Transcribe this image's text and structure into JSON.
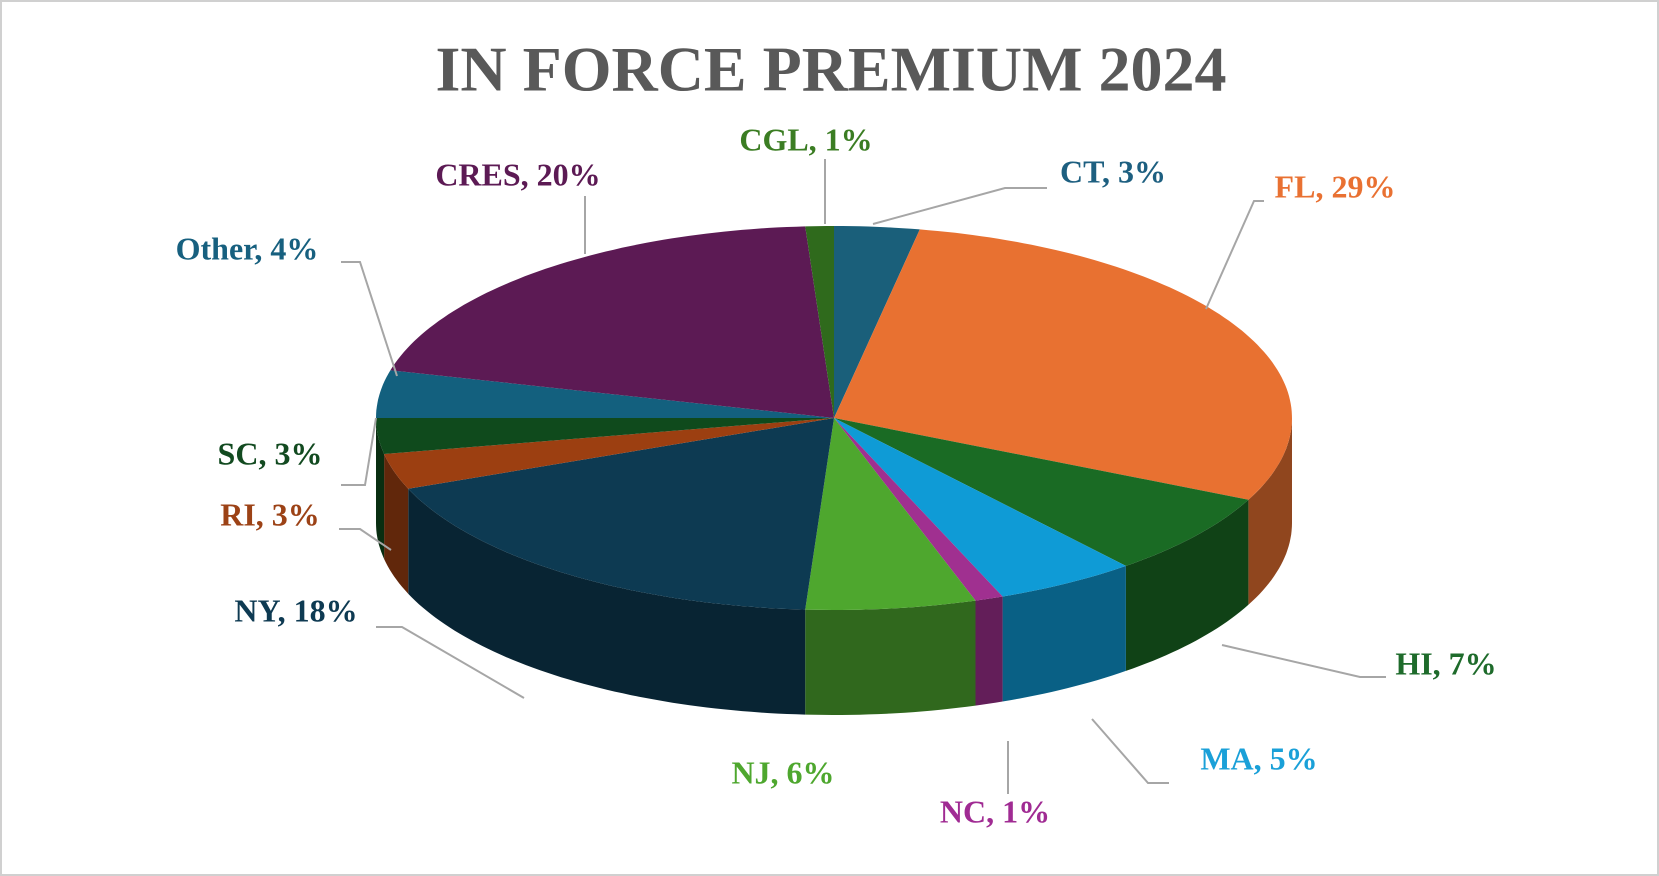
{
  "chart_data": {
    "type": "pie",
    "title": "IN FORCE PREMIUM 2024",
    "categories": [
      "CT",
      "FL",
      "HI",
      "MA",
      "NC",
      "NJ",
      "NY",
      "RI",
      "SC",
      "Other",
      "CRES",
      "CGL"
    ],
    "values": [
      3,
      29,
      7,
      5,
      1,
      6,
      18,
      3,
      3,
      4,
      20,
      1
    ],
    "value_labels": [
      "CT, 3%",
      "FL, 29%",
      "HI, 7%",
      "MA, 5%",
      "NC, 1%",
      "NJ, 6%",
      "NY, 18%",
      "RI, 3%",
      "SC, 3%",
      "Other, 4%",
      "CRES, 20%",
      "CGL, 1%"
    ],
    "colors": [
      "#1a5f7a",
      "#e87131",
      "#1a6b24",
      "#0f9bd6",
      "#a03090",
      "#4ea72e",
      "#0d3a52",
      "#9c3f11",
      "#0f4a1c",
      "#13607e",
      "#5c1a54",
      "#2f6a1c"
    ],
    "label_colors": [
      "#1d5f80",
      "#e97132",
      "#1e6b2b",
      "#1aa0d8",
      "#a02b93",
      "#4ea72e",
      "#0e3a52",
      "#9c4216",
      "#124a20",
      "#17607f",
      "#5c1a54",
      "#3b7d23"
    ]
  }
}
